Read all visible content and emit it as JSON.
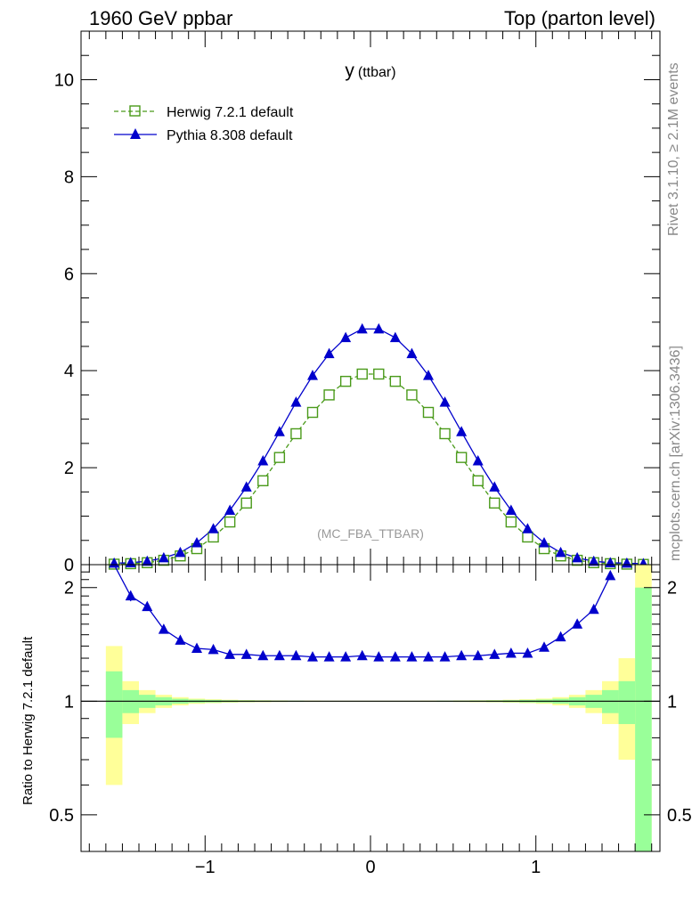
{
  "header": {
    "left": "1960 GeV ppbar",
    "right": "Top (parton level)"
  },
  "side": {
    "rivet": "Rivet 3.1.10, ≥ 2.1M events",
    "source": "mcplots.cern.ch [arXiv:1306.3436]"
  },
  "chart_data": [
    {
      "type": "line",
      "panel": "main",
      "title_main": "y",
      "title_sub": "(ttbar)",
      "watermark": "(MC_FBA_TTBAR)",
      "xlabel": "",
      "ylabel": "",
      "xlim": [
        -1.75,
        1.75
      ],
      "ylim": [
        0,
        11
      ],
      "x_ticks": [
        -1,
        0,
        1
      ],
      "x_tick_labels": [
        "−1",
        "0",
        "1"
      ],
      "y_ticks": [
        0,
        2,
        4,
        6,
        8,
        10
      ],
      "y_tick_labels": [
        "0",
        "2",
        "4",
        "6",
        "8",
        "10"
      ],
      "legend_position": "top-left",
      "x": [
        -1.55,
        -1.45,
        -1.35,
        -1.25,
        -1.15,
        -1.05,
        -0.95,
        -0.85,
        -0.75,
        -0.65,
        -0.55,
        -0.45,
        -0.35,
        -0.25,
        -0.15,
        -0.05,
        0.05,
        0.15,
        0.25,
        0.35,
        0.45,
        0.55,
        0.65,
        0.75,
        0.85,
        0.95,
        1.05,
        1.15,
        1.25,
        1.35,
        1.45,
        1.55,
        1.65
      ],
      "series": [
        {
          "name": "Herwig 7.2.1 default",
          "color": "#4a9a1a",
          "marker": "open-square",
          "line": "dashed",
          "values": [
            0.01,
            0.02,
            0.04,
            0.09,
            0.18,
            0.33,
            0.57,
            0.88,
            1.27,
            1.73,
            2.21,
            2.7,
            3.14,
            3.5,
            3.78,
            3.93,
            3.93,
            3.78,
            3.5,
            3.14,
            2.7,
            2.21,
            1.73,
            1.27,
            0.88,
            0.57,
            0.33,
            0.18,
            0.09,
            0.04,
            0.02,
            0.01,
            0.005
          ]
        },
        {
          "name": "Pythia 8.308 default",
          "color": "#0000cc",
          "marker": "filled-triangle",
          "line": "solid",
          "values": [
            0.03,
            0.04,
            0.07,
            0.14,
            0.25,
            0.45,
            0.74,
            1.12,
            1.6,
            2.14,
            2.74,
            3.35,
            3.9,
            4.35,
            4.68,
            4.86,
            4.86,
            4.68,
            4.35,
            3.9,
            3.35,
            2.74,
            2.14,
            1.6,
            1.12,
            0.74,
            0.45,
            0.25,
            0.14,
            0.07,
            0.04,
            0.03,
            0.02
          ]
        }
      ]
    },
    {
      "type": "line",
      "panel": "ratio",
      "xlabel": "",
      "ylabel": "Ratio to Herwig 7.2.1 default",
      "ylim": [
        0.4,
        2.3
      ],
      "y_scale": "log",
      "y_ticks": [
        0.5,
        1,
        2
      ],
      "y_tick_labels": [
        "0.5",
        "1",
        "2"
      ],
      "x_ticks": [
        -1,
        0,
        1
      ],
      "x_tick_labels": [
        "−1",
        "0",
        "1"
      ],
      "reference_line": 1,
      "band_edges": [
        -1.6,
        -1.5,
        -1.4,
        -1.3,
        -1.2,
        -1.1,
        -1.0,
        -0.9,
        -0.8,
        -0.7,
        -0.6,
        -0.5,
        -0.4,
        -0.3,
        -0.2,
        -0.1,
        0.0,
        0.1,
        0.2,
        0.3,
        0.4,
        0.5,
        0.6,
        0.7,
        0.8,
        0.9,
        1.0,
        1.1,
        1.2,
        1.3,
        1.4,
        1.5,
        1.6,
        1.7
      ],
      "band_inner_half_width": [
        0.2,
        0.07,
        0.04,
        0.025,
        0.015,
        0.01,
        0.008,
        0.006,
        0.005,
        0.004,
        0.003,
        0.003,
        0.002,
        0.002,
        0.002,
        0.002,
        0.002,
        0.002,
        0.002,
        0.002,
        0.003,
        0.003,
        0.004,
        0.005,
        0.006,
        0.008,
        0.01,
        0.015,
        0.025,
        0.04,
        0.07,
        0.13,
        1.0
      ],
      "band_outer_half_width": [
        0.4,
        0.13,
        0.07,
        0.04,
        0.025,
        0.016,
        0.012,
        0.009,
        0.007,
        0.006,
        0.005,
        0.004,
        0.004,
        0.003,
        0.003,
        0.003,
        0.003,
        0.003,
        0.003,
        0.004,
        0.004,
        0.005,
        0.006,
        0.007,
        0.009,
        0.012,
        0.016,
        0.025,
        0.04,
        0.07,
        0.13,
        0.3,
        1.4
      ],
      "band_inner_color": "#99ff99",
      "band_outer_color": "#ffff99",
      "series": [
        {
          "name": "Pythia 8.308 default",
          "color": "#0000cc",
          "marker": "filled-triangle",
          "x": [
            -1.55,
            -1.45,
            -1.35,
            -1.25,
            -1.15,
            -1.05,
            -0.95,
            -0.85,
            -0.75,
            -0.65,
            -0.55,
            -0.45,
            -0.35,
            -0.25,
            -0.15,
            -0.05,
            0.05,
            0.15,
            0.25,
            0.35,
            0.45,
            0.55,
            0.65,
            0.75,
            0.85,
            0.95,
            1.05,
            1.15,
            1.25,
            1.35,
            1.45
          ],
          "values": [
            3.0,
            1.9,
            1.78,
            1.55,
            1.45,
            1.38,
            1.37,
            1.33,
            1.33,
            1.32,
            1.32,
            1.32,
            1.31,
            1.31,
            1.31,
            1.32,
            1.31,
            1.31,
            1.31,
            1.31,
            1.31,
            1.32,
            1.32,
            1.33,
            1.34,
            1.34,
            1.39,
            1.48,
            1.6,
            1.75,
            2.15
          ],
          "errors": [
            0,
            0.06,
            0.03,
            0.02,
            0.012,
            0.01,
            0.008,
            0.006,
            0.005,
            0.004,
            0.004,
            0.003,
            0.003,
            0.003,
            0.003,
            0.003,
            0.003,
            0.003,
            0.003,
            0.003,
            0.003,
            0.004,
            0.004,
            0.005,
            0.006,
            0.008,
            0.01,
            0.012,
            0.02,
            0.03,
            0.05
          ]
        }
      ]
    }
  ]
}
